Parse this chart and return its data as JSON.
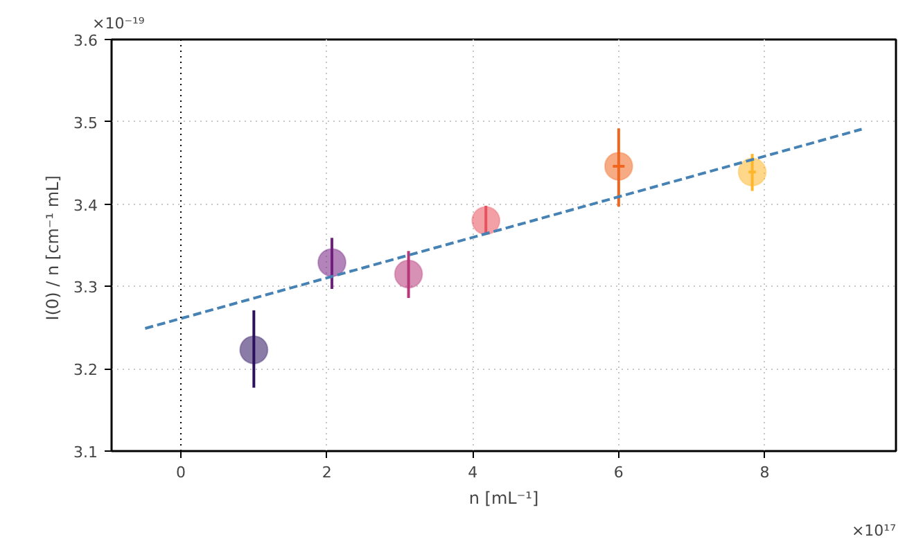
{
  "chart_data": {
    "type": "scatter",
    "xlabel": "n [mL⁻¹]",
    "ylabel": "I(0) / n  [cm⁻¹ mL]",
    "annotations": [
      "×10⁻¹⁹",
      "×10¹⁷"
    ],
    "xlim": [
      -0.95,
      9.8
    ],
    "ylim": [
      3.1,
      3.6
    ],
    "xticks": [
      0,
      2,
      4,
      6,
      8
    ],
    "yticks": [
      3.1,
      3.2,
      3.3,
      3.4,
      3.5,
      3.6
    ],
    "grid": true,
    "ref_lines": [
      {
        "axis": "x",
        "value": 0,
        "color": "#000000",
        "line_style": "dotted"
      }
    ],
    "series": [
      {
        "marker": "circle",
        "x": [
          1.0,
          2.07,
          3.12,
          4.18,
          6.0,
          7.83
        ],
        "values": [
          3.223,
          3.329,
          3.315,
          3.38,
          3.446,
          3.439
        ],
        "colors": [
          "#2c115f",
          "#721f81",
          "#b73779",
          "#e8525c",
          "#f0661f",
          "#feb72b"
        ],
        "errors": [
          [
            3.177,
            3.271
          ],
          [
            3.297,
            3.359
          ],
          [
            3.286,
            3.343
          ],
          [
            3.364,
            3.398
          ],
          [
            3.397,
            3.492
          ],
          [
            3.416,
            3.461
          ]
        ],
        "xerrors": [
          null,
          null,
          null,
          null,
          0.08,
          0.05
        ]
      },
      {
        "type": "line",
        "x": [
          -0.49,
          9.33
        ],
        "values": [
          3.249,
          3.491
        ],
        "color": "#4682b4",
        "line_style": "dashed",
        "marker": "none"
      }
    ]
  }
}
